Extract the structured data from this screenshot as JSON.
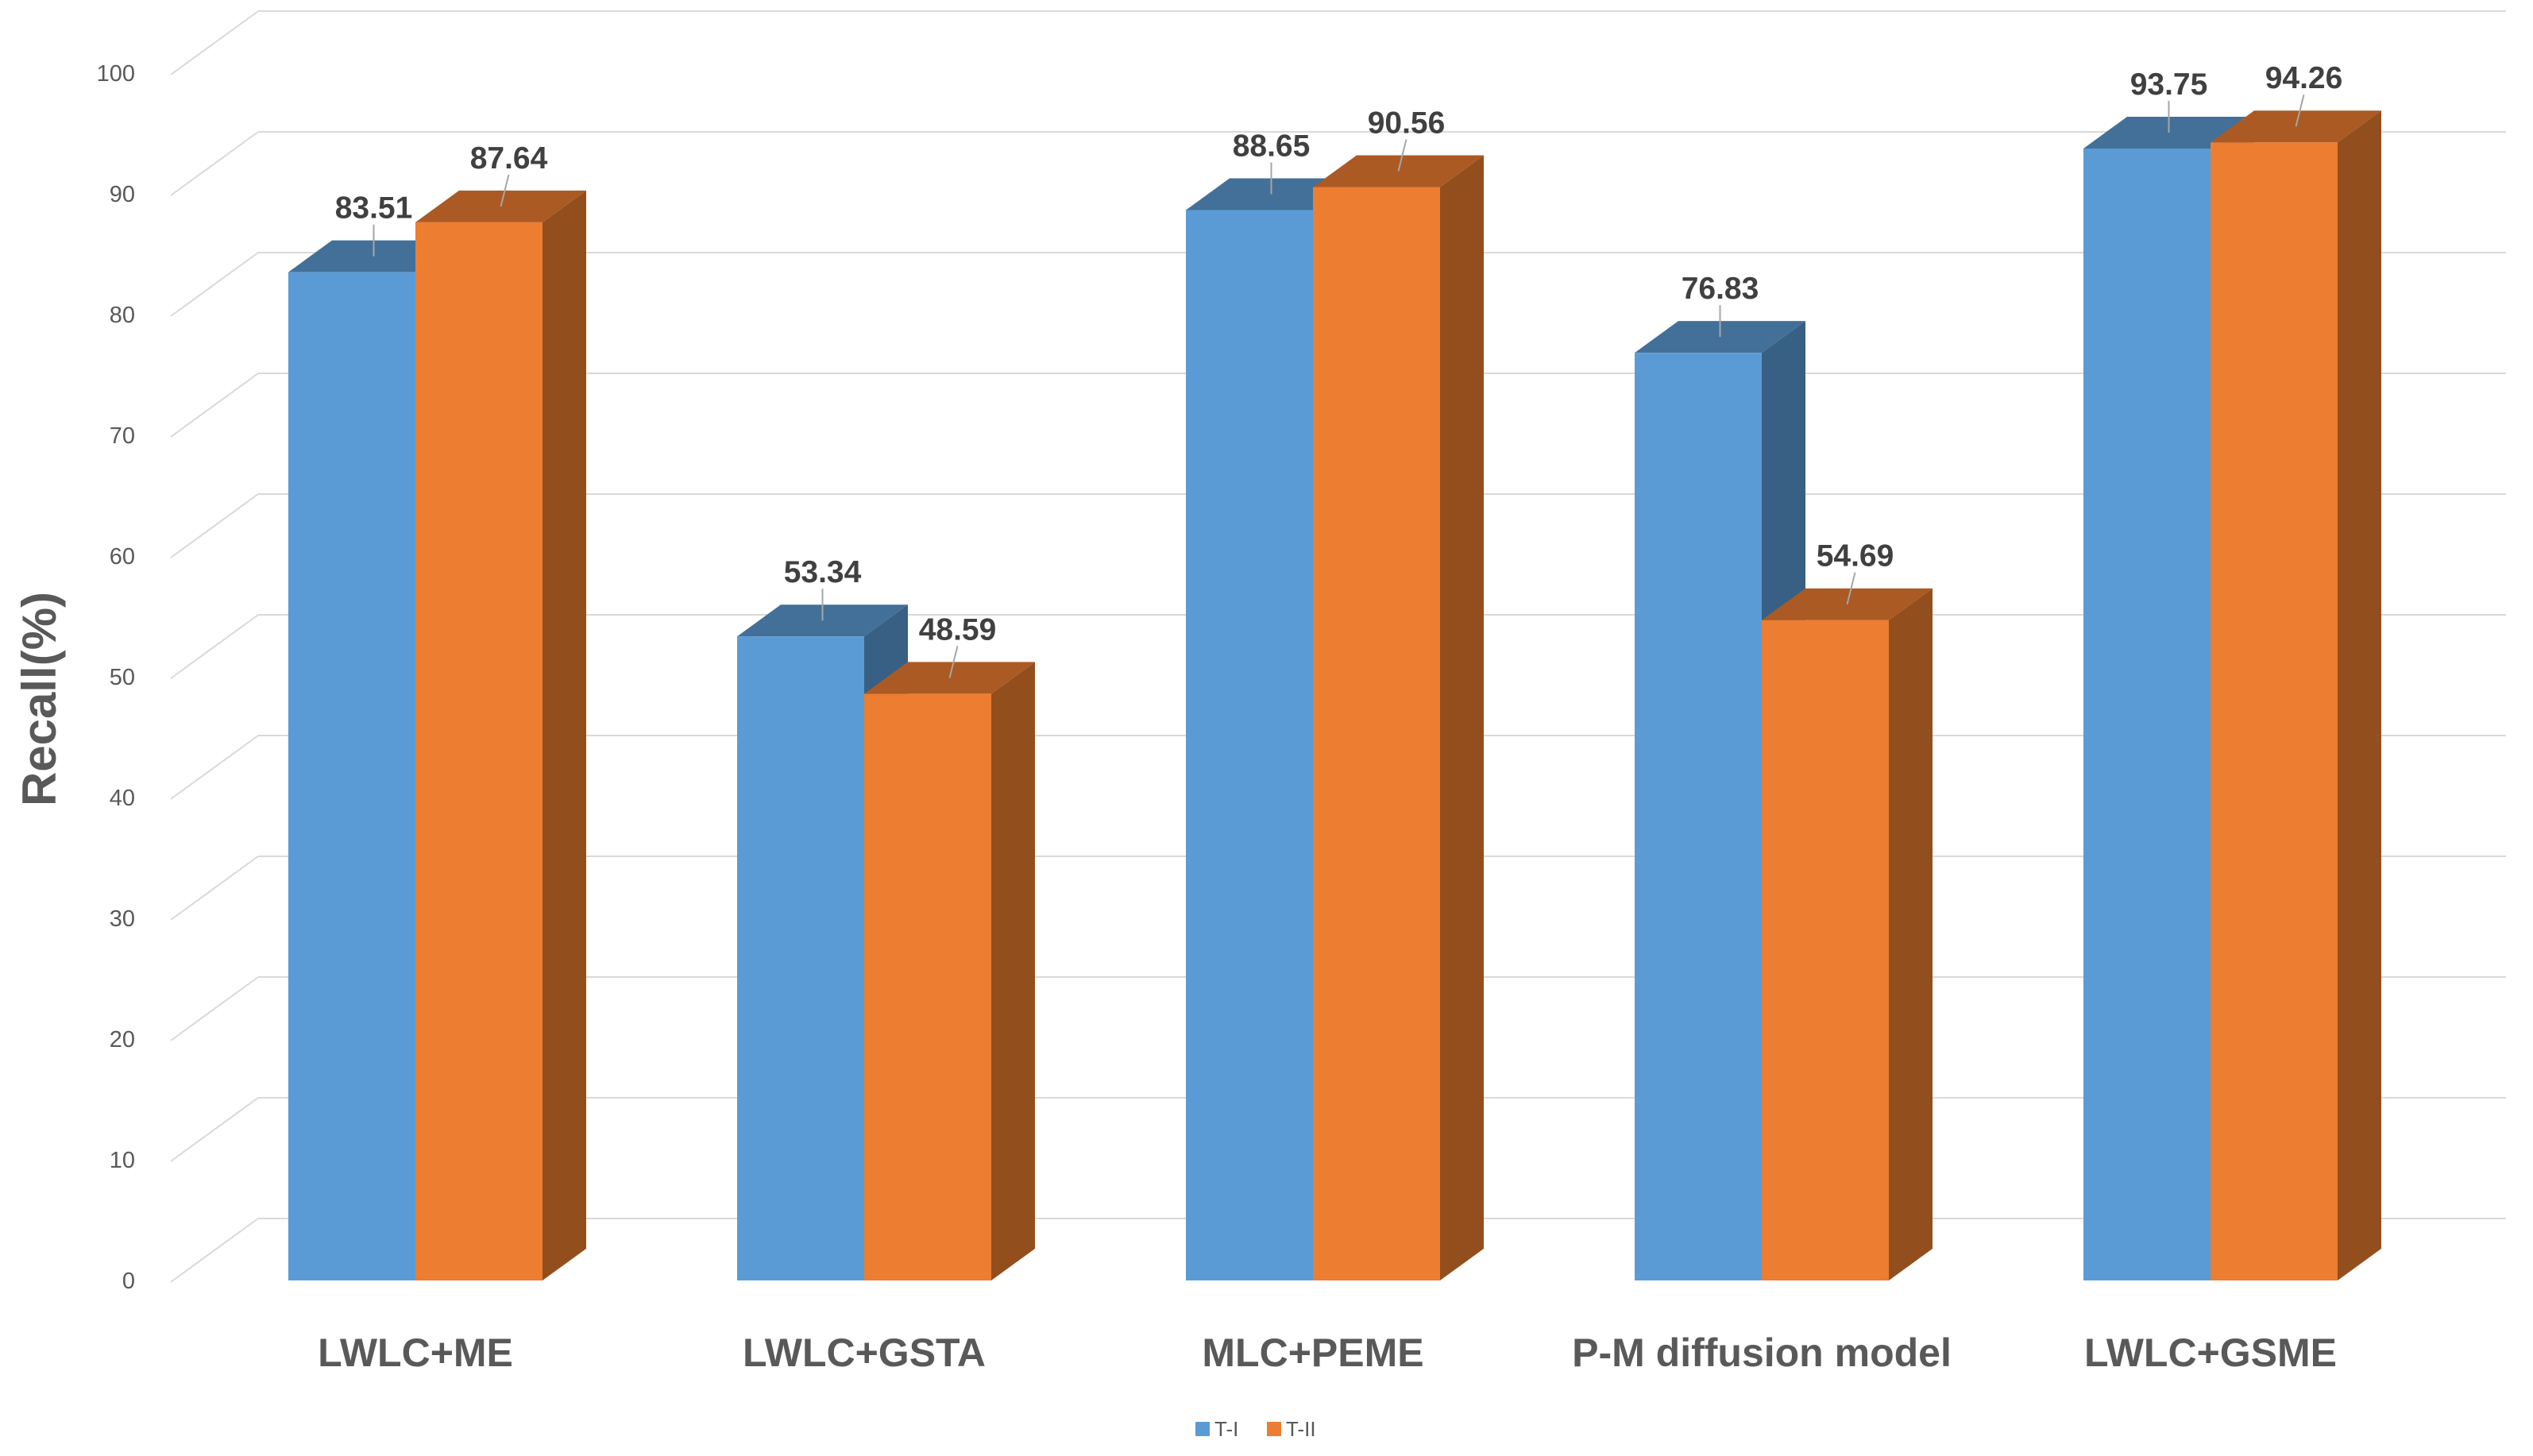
{
  "chart_data": {
    "type": "bar",
    "style": "3d-clustered-column",
    "title": "",
    "xlabel": "",
    "ylabel": "Recall(%)",
    "ylim": [
      0,
      100
    ],
    "yticks": [
      0,
      10,
      20,
      30,
      40,
      50,
      60,
      70,
      80,
      90,
      100
    ],
    "grid": true,
    "legend": "bottom-center",
    "categories": [
      "LWLC+ME",
      "LWLC+GSTA",
      "MLC+PEME",
      "P-M diffusion model",
      "LWLC+GSME"
    ],
    "series": [
      {
        "name": "T-I",
        "color": "#5b9bd5",
        "values": [
          83.51,
          53.34,
          88.65,
          76.83,
          93.75
        ],
        "labels": [
          "83.51",
          "53.34",
          "88.65",
          "76.83",
          "93.75"
        ]
      },
      {
        "name": "T-II",
        "color": "#ed7d31",
        "values": [
          87.64,
          48.59,
          90.56,
          54.69,
          94.26
        ],
        "labels": [
          "87.64",
          "48.59",
          "90.56",
          "54.69",
          "94.26"
        ]
      }
    ]
  }
}
